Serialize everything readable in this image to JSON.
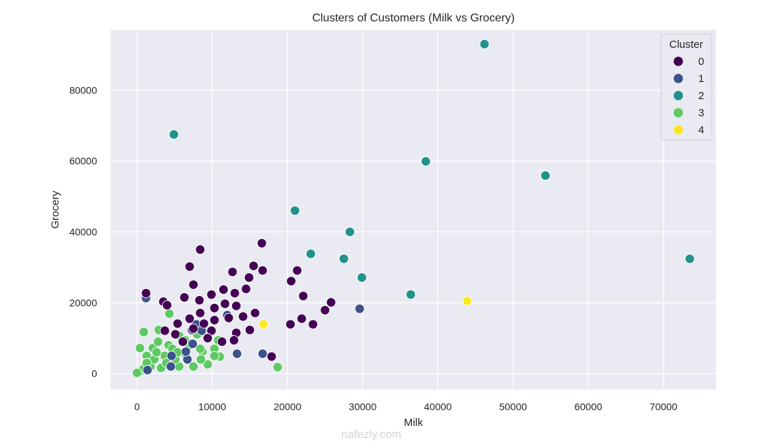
{
  "chart_data": {
    "type": "scatter",
    "title": "Clusters of Customers (Milk vs Grocery)",
    "xlabel": "Milk",
    "ylabel": "Grocery",
    "xlim": [
      -3500,
      77000
    ],
    "ylim": [
      -4500,
      97000
    ],
    "xticks": [
      0,
      10000,
      20000,
      30000,
      40000,
      50000,
      60000,
      70000
    ],
    "yticks": [
      0,
      20000,
      40000,
      60000,
      80000
    ],
    "grid": true,
    "legend": {
      "title": "Cluster",
      "placement": "top-right",
      "entries": [
        "0",
        "1",
        "2",
        "3",
        "4"
      ]
    },
    "colors": {
      "0": "#440154",
      "1": "#3b528b",
      "2": "#21918c",
      "3": "#5ec962",
      "4": "#fde725"
    },
    "series": [
      {
        "name": "0",
        "points": [
          [
            8400,
            35000
          ],
          [
            16600,
            36800
          ],
          [
            15500,
            30400
          ],
          [
            16700,
            29100
          ],
          [
            12700,
            28700
          ],
          [
            14900,
            27100
          ],
          [
            21300,
            29100
          ],
          [
            20500,
            26100
          ],
          [
            22100,
            21900
          ],
          [
            25800,
            20100
          ],
          [
            21900,
            15500
          ],
          [
            20400,
            13900
          ],
          [
            23400,
            13900
          ],
          [
            25000,
            17900
          ],
          [
            15000,
            12300
          ],
          [
            15700,
            17100
          ],
          [
            17900,
            4800
          ],
          [
            1200,
            22700
          ],
          [
            3500,
            20300
          ],
          [
            4000,
            19300
          ],
          [
            7000,
            30200
          ],
          [
            7500,
            25100
          ],
          [
            6300,
            21500
          ],
          [
            8300,
            20700
          ],
          [
            9900,
            22300
          ],
          [
            11500,
            23700
          ],
          [
            13000,
            22700
          ],
          [
            14500,
            23900
          ],
          [
            13200,
            19100
          ],
          [
            11700,
            19700
          ],
          [
            10300,
            18500
          ],
          [
            8400,
            17100
          ],
          [
            7000,
            15500
          ],
          [
            5400,
            14100
          ],
          [
            10300,
            15100
          ],
          [
            12200,
            15700
          ],
          [
            14100,
            16100
          ],
          [
            13200,
            11500
          ],
          [
            9900,
            12100
          ],
          [
            7500,
            12700
          ],
          [
            5100,
            11100
          ],
          [
            11300,
            9000
          ],
          [
            9400,
            10000
          ],
          [
            6100,
            9000
          ],
          [
            3700,
            12100
          ],
          [
            12900,
            9400
          ],
          [
            8900,
            14100
          ]
        ]
      },
      {
        "name": "1",
        "points": [
          [
            1200,
            21300
          ],
          [
            12000,
            16500
          ],
          [
            29600,
            18300
          ],
          [
            13300,
            5600
          ],
          [
            16700,
            5600
          ],
          [
            7300,
            12300
          ],
          [
            7400,
            8400
          ],
          [
            7900,
            13900
          ],
          [
            6700,
            4000
          ],
          [
            4500,
            2000
          ],
          [
            1400,
            1000
          ],
          [
            6500,
            6200
          ],
          [
            4600,
            5000
          ],
          [
            8600,
            12100
          ]
        ]
      },
      {
        "name": "2",
        "points": [
          [
            46200,
            93000
          ],
          [
            4900,
            67500
          ],
          [
            38400,
            59900
          ],
          [
            54300,
            55900
          ],
          [
            21000,
            46000
          ],
          [
            28300,
            40000
          ],
          [
            23100,
            33800
          ],
          [
            27500,
            32400
          ],
          [
            29900,
            27100
          ],
          [
            36400,
            22300
          ],
          [
            73500,
            32400
          ]
        ]
      },
      {
        "name": "3",
        "points": [
          [
            18700,
            1800
          ],
          [
            900,
            11700
          ],
          [
            4300,
            16900
          ],
          [
            2900,
            12300
          ],
          [
            400,
            7200
          ],
          [
            11000,
            4800
          ],
          [
            8700,
            6200
          ],
          [
            2100,
            7200
          ],
          [
            5600,
            10700
          ],
          [
            2800,
            9000
          ],
          [
            4200,
            8000
          ],
          [
            1300,
            5000
          ],
          [
            3700,
            5000
          ],
          [
            6500,
            5400
          ],
          [
            8400,
            7000
          ],
          [
            9400,
            2600
          ],
          [
            5600,
            2000
          ],
          [
            3200,
            1600
          ],
          [
            1800,
            2000
          ],
          [
            400,
            600
          ],
          [
            900,
            1400
          ],
          [
            2300,
            4000
          ],
          [
            5100,
            4000
          ],
          [
            7500,
            2000
          ],
          [
            10300,
            7000
          ],
          [
            7000,
            8000
          ],
          [
            4700,
            7000
          ],
          [
            8000,
            11100
          ],
          [
            6400,
            9400
          ],
          [
            10800,
            9400
          ],
          [
            0,
            200
          ],
          [
            1300,
            3000
          ],
          [
            3900,
            3000
          ],
          [
            2600,
            6000
          ],
          [
            5400,
            6000
          ],
          [
            10300,
            5000
          ],
          [
            8500,
            4000
          ]
        ]
      },
      {
        "name": "4",
        "points": [
          [
            43900,
            20500
          ],
          [
            16800,
            13900
          ]
        ]
      }
    ]
  },
  "watermark": "nafezly.com"
}
